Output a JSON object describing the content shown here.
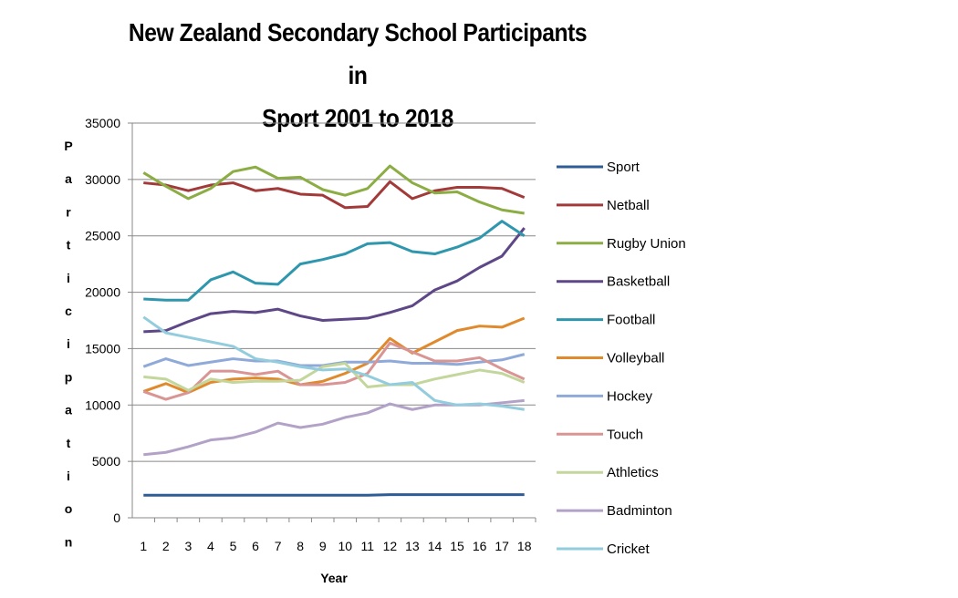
{
  "chart_data": {
    "type": "line",
    "title": "New Zealand Secondary School Participants in Sport 2001 to 2018",
    "title_lines": [
      "New Zealand Secondary School Participants in",
      "Sport 2001 to 2018"
    ],
    "xlabel": "Year",
    "ylabel": "Participation",
    "x": [
      1,
      2,
      3,
      4,
      5,
      6,
      7,
      8,
      9,
      10,
      11,
      12,
      13,
      14,
      15,
      16,
      17,
      18
    ],
    "ylim": [
      0,
      35000
    ],
    "yticks": [
      0,
      5000,
      10000,
      15000,
      20000,
      25000,
      30000,
      35000
    ],
    "grid": true,
    "legend": "right",
    "series": [
      {
        "name": "Sport",
        "color": "#2e5c96",
        "values": [
          2000,
          2000,
          2000,
          2000,
          2000,
          2000,
          2000,
          2000,
          2000,
          2000,
          2000,
          2050,
          2050,
          2050,
          2050,
          2050,
          2050,
          2050
        ]
      },
      {
        "name": "Netball",
        "color": "#a33a3a",
        "values": [
          29700,
          29500,
          29000,
          29500,
          29700,
          29000,
          29200,
          28700,
          28600,
          27500,
          27600,
          29800,
          28300,
          29000,
          29300,
          29300,
          29200,
          28400
        ]
      },
      {
        "name": "Rugby Union",
        "color": "#8cad44",
        "values": [
          30600,
          29400,
          28300,
          29200,
          30700,
          31100,
          30100,
          30200,
          29100,
          28600,
          29200,
          31200,
          29700,
          28800,
          28900,
          28000,
          27300,
          27000
        ]
      },
      {
        "name": "Basketball",
        "color": "#5e4787",
        "values": [
          16500,
          16600,
          17400,
          18100,
          18300,
          18200,
          18500,
          17900,
          17500,
          17600,
          17700,
          18200,
          18800,
          20200,
          21000,
          22200,
          23200,
          25700
        ]
      },
      {
        "name": "Football",
        "color": "#2f97ad",
        "values": [
          19400,
          19300,
          19300,
          21100,
          21800,
          20800,
          20700,
          22500,
          22900,
          23400,
          24300,
          24400,
          23600,
          23400,
          24000,
          24800,
          26300,
          25000
        ]
      },
      {
        "name": "Volleyball",
        "color": "#e08a2e",
        "values": [
          11200,
          11900,
          11100,
          12000,
          12300,
          12400,
          12300,
          11800,
          12100,
          12800,
          13700,
          15900,
          14600,
          15600,
          16600,
          17000,
          16900,
          17700
        ]
      },
      {
        "name": "Hockey",
        "color": "#8faad8",
        "values": [
          13400,
          14100,
          13500,
          13800,
          14100,
          13900,
          13900,
          13500,
          13500,
          13800,
          13800,
          13900,
          13700,
          13700,
          13600,
          13800,
          14000,
          14500
        ]
      },
      {
        "name": "Touch",
        "color": "#d99594",
        "values": [
          11200,
          10500,
          11100,
          13000,
          13000,
          12700,
          13000,
          11800,
          11800,
          12000,
          12800,
          15500,
          14700,
          13900,
          13900,
          14200,
          13200,
          12300
        ]
      },
      {
        "name": "Athletics",
        "color": "#c3d69b",
        "values": [
          12500,
          12300,
          11300,
          12300,
          12000,
          12100,
          12100,
          12200,
          13400,
          13700,
          11600,
          11800,
          11800,
          12300,
          12700,
          13100,
          12800,
          12000
        ]
      },
      {
        "name": "Badminton",
        "color": "#b3a2c7",
        "values": [
          5600,
          5800,
          6300,
          6900,
          7100,
          7600,
          8400,
          8000,
          8300,
          8900,
          9300,
          10100,
          9600,
          10000,
          10000,
          10000,
          10200,
          10400
        ]
      },
      {
        "name": "Cricket",
        "color": "#93cddd",
        "values": [
          17800,
          16400,
          16000,
          15600,
          15200,
          14100,
          13800,
          13400,
          13100,
          13200,
          12600,
          11800,
          12000,
          10400,
          10000,
          10100,
          9900,
          9600
        ]
      }
    ]
  }
}
